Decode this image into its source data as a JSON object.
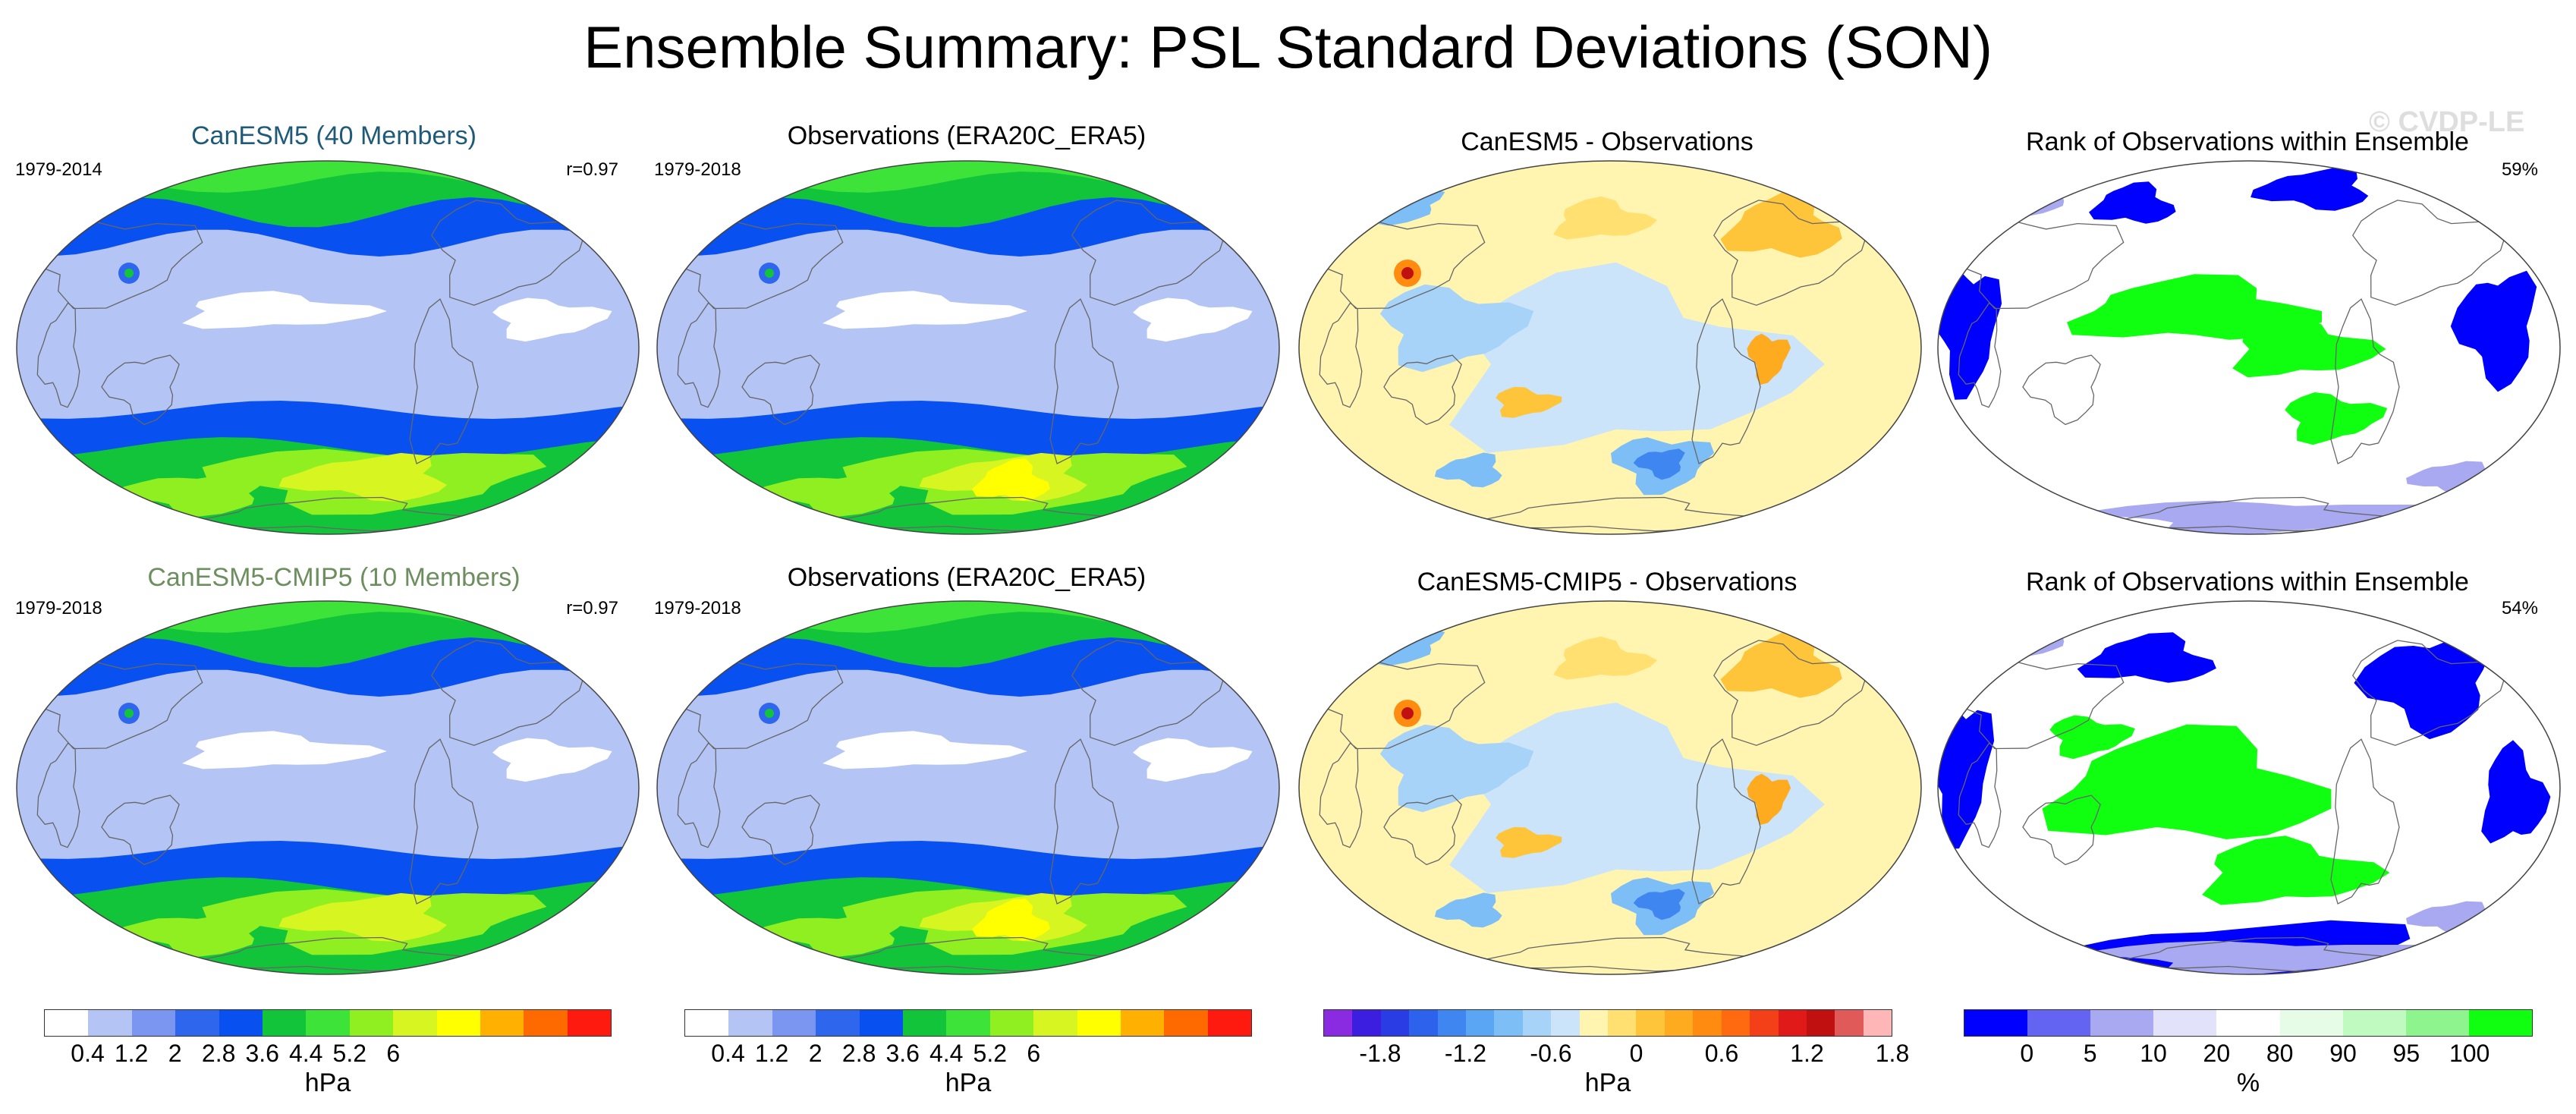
{
  "figure": {
    "title": "Ensemble Summary: PSL Standard Deviations (SON)",
    "watermark": "© CVDP-LE"
  },
  "panels": [
    {
      "title": "CanESM5 (40 Members)",
      "title_color": "#1f5a78",
      "left_label": "1979-2014",
      "right_label": "r=0.97",
      "field": "std",
      "variant": "model"
    },
    {
      "title": "Observations (ERA20C_ERA5)",
      "title_color": "#000000",
      "left_label": "1979-2018",
      "right_label": "",
      "field": "std",
      "variant": "obs"
    },
    {
      "title": "CanESM5 - Observations",
      "title_color": "#000000",
      "left_label": "",
      "right_label": "",
      "field": "diff",
      "variant": "diff"
    },
    {
      "title": "Rank of Observations within Ensemble",
      "title_color": "#000000",
      "left_label": "",
      "right_label": "59%",
      "field": "rank",
      "variant": "rank1"
    },
    {
      "title": "CanESM5-CMIP5 (10 Members)",
      "title_color": "#6d8f5f",
      "left_label": "1979-2018",
      "right_label": "r=0.97",
      "field": "std",
      "variant": "model"
    },
    {
      "title": "Observations (ERA20C_ERA5)",
      "title_color": "#000000",
      "left_label": "1979-2018",
      "right_label": "",
      "field": "std",
      "variant": "obs"
    },
    {
      "title": "CanESM5-CMIP5 - Observations",
      "title_color": "#000000",
      "left_label": "",
      "right_label": "",
      "field": "diff",
      "variant": "diff"
    },
    {
      "title": "Rank of Observations within Ensemble",
      "title_color": "#000000",
      "left_label": "",
      "right_label": "54%",
      "field": "rank",
      "variant": "rank2"
    }
  ],
  "colorbars": [
    {
      "name": "std",
      "unit": "hPa",
      "colors": [
        "#ffffff",
        "#b3c4f5",
        "#7b96f0",
        "#2f66ee",
        "#0850f0",
        "#12c43a",
        "#3ee33a",
        "#8fef20",
        "#d7f521",
        "#ffff00",
        "#ffb000",
        "#ff6a00",
        "#ff1a10"
      ],
      "tick_labels": [
        "0.4",
        "1.2",
        "2",
        "2.8",
        "3.6",
        "4.4",
        "5.2",
        "6"
      ]
    },
    {
      "name": "std",
      "unit": "hPa",
      "colors": [
        "#ffffff",
        "#b3c4f5",
        "#7b96f0",
        "#2f66ee",
        "#0850f0",
        "#12c43a",
        "#3ee33a",
        "#8fef20",
        "#d7f521",
        "#ffff00",
        "#ffb000",
        "#ff6a00",
        "#ff1a10"
      ],
      "tick_labels": [
        "0.4",
        "1.2",
        "2",
        "2.8",
        "3.6",
        "4.4",
        "5.2",
        "6"
      ]
    },
    {
      "name": "diff",
      "unit": "hPa",
      "colors": [
        "#8a2be2",
        "#3c1ee0",
        "#2a3de4",
        "#2d62ec",
        "#3f86f0",
        "#5aa6f5",
        "#7ebef7",
        "#a8d3f8",
        "#cbe4f9",
        "#fff5b0",
        "#ffe070",
        "#ffc53a",
        "#ffab20",
        "#ff8c10",
        "#ff6a10",
        "#f34018",
        "#e01a18",
        "#c01010",
        "#e05a5a",
        "#ffb6b6"
      ],
      "tick_labels": [
        "-1.8",
        "-1.2",
        "-0.6",
        "0",
        "0.6",
        "1.2",
        "1.8"
      ]
    },
    {
      "name": "rank",
      "unit": "%",
      "colors": [
        "#0000ff",
        "#6464f2",
        "#a9a9f2",
        "#e2e2fa",
        "#ffffff",
        "#e6fce6",
        "#c0fac0",
        "#8ef58e",
        "#10ff10"
      ],
      "tick_labels": [
        "0",
        "5",
        "10",
        "20",
        "80",
        "90",
        "95",
        "100"
      ]
    }
  ]
}
